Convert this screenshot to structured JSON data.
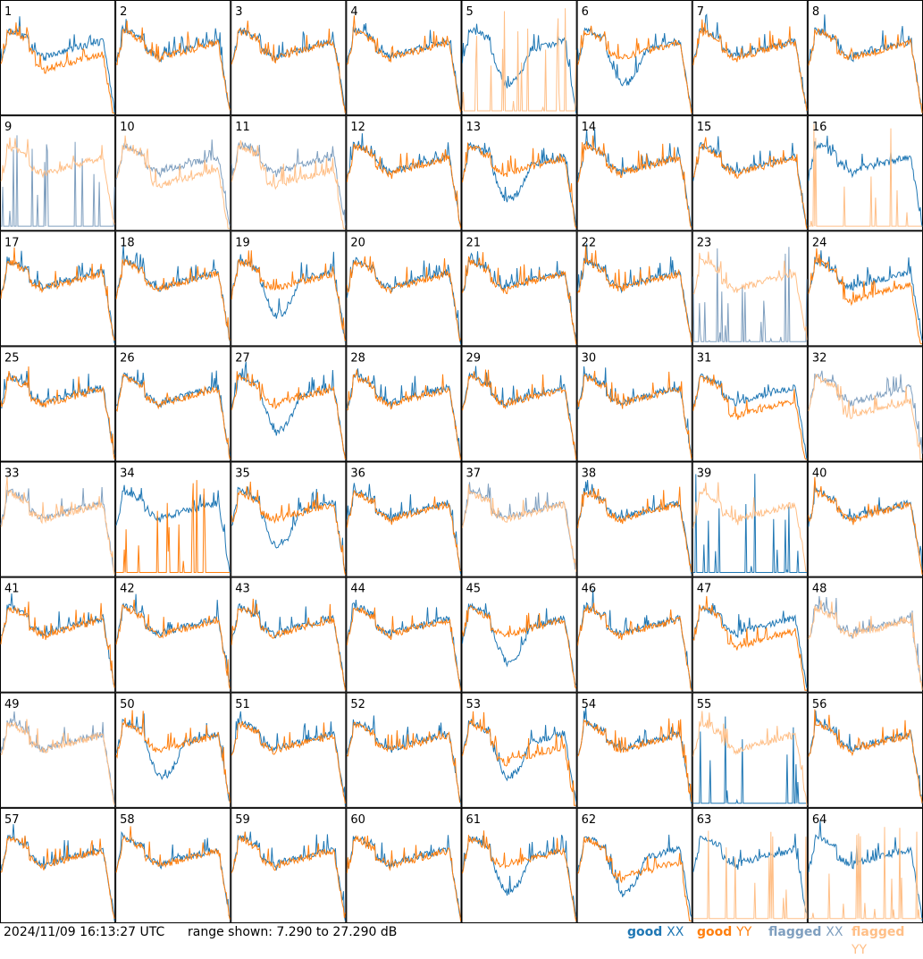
{
  "chart_data": {
    "type": "line",
    "timestamp": "2024/11/09 16:13:27 UTC",
    "range_text": "range shown: 7.290 to 27.290 dB",
    "ylim": [
      7.29,
      27.29
    ],
    "grid": {
      "rows": 8,
      "cols": 8
    },
    "legend": [
      {
        "key": "good_xx",
        "label_a": "good",
        "label_b": "XX",
        "color": "#1f77b4"
      },
      {
        "key": "good_yy",
        "label_a": "good",
        "label_b": "YY",
        "color": "#ff7f0e"
      },
      {
        "key": "flagged_xx",
        "label_a": "flagged",
        "label_b": "XX",
        "color": "#7f9fbf"
      },
      {
        "key": "flagged_yy",
        "label_a": "flagged",
        "label_b": "YY",
        "color": "#ffbf87"
      }
    ],
    "panel_labels": [
      "1",
      "2",
      "3",
      "4",
      "5",
      "6",
      "7",
      "8",
      "9",
      "10",
      "11",
      "12",
      "13",
      "14",
      "15",
      "16",
      "17",
      "18",
      "19",
      "20",
      "21",
      "22",
      "23",
      "24",
      "25",
      "26",
      "27",
      "28",
      "29",
      "30",
      "31",
      "32",
      "33",
      "34",
      "35",
      "36",
      "37",
      "38",
      "39",
      "40",
      "41",
      "42",
      "43",
      "44",
      "45",
      "46",
      "47",
      "48",
      "49",
      "50",
      "51",
      "52",
      "53",
      "54",
      "55",
      "56",
      "57",
      "58",
      "59",
      "60",
      "61",
      "62",
      "63",
      "64"
    ],
    "panels": {
      "xx_flagged": [
        9,
        23,
        48,
        49,
        33,
        37,
        10,
        11,
        32
      ],
      "yy_flagged": [
        10,
        11,
        32,
        33,
        37,
        48,
        49,
        5,
        16,
        9,
        23,
        39,
        55,
        63,
        64
      ],
      "xx_spiky": [
        9,
        23,
        39,
        55
      ],
      "yy_spiky": [
        5,
        16,
        34,
        63,
        64
      ],
      "xx_dip": [
        6,
        13,
        19,
        27,
        35,
        45,
        50,
        53,
        61,
        62,
        5
      ],
      "yy_low": [
        1,
        11,
        10,
        24,
        31,
        32,
        47,
        62,
        53
      ]
    }
  }
}
